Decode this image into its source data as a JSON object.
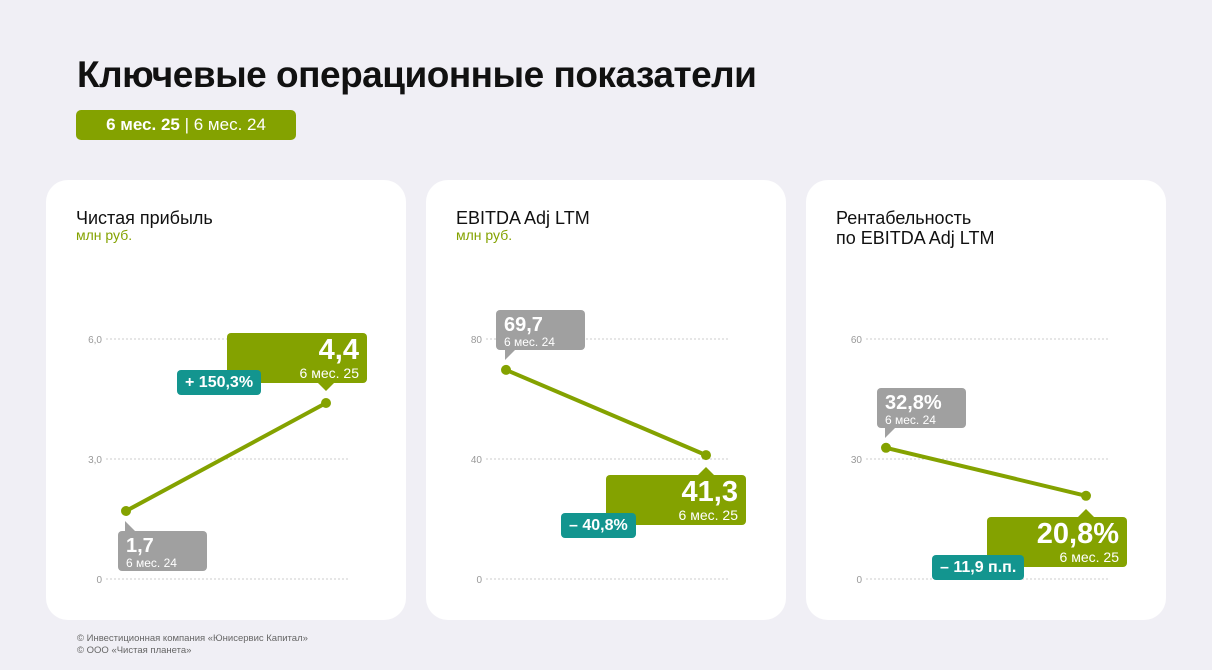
{
  "title": "Ключевые операционные показатели",
  "period": {
    "current": "6 мес. 25",
    "separator": "|",
    "previous": "6 мес. 24"
  },
  "colors": {
    "accent": "#84a200",
    "previous": "#a0a0a0",
    "change": "#13958f",
    "background": "#f0eff5"
  },
  "chart_data": [
    {
      "type": "line",
      "title": "Чистая прибыль",
      "unit": "млн руб.",
      "yticks": [
        "0",
        "3,0",
        "6,0"
      ],
      "ylim": [
        0,
        6
      ],
      "x": [
        "6 мес. 24",
        "6 мес. 25"
      ],
      "values": [
        1.7,
        4.4
      ],
      "labels": [
        "1,7",
        "4,4"
      ],
      "change": "+ 150,3%",
      "grid": true
    },
    {
      "type": "line",
      "title": "EBITDA Adj LTM",
      "unit": "млн руб.",
      "yticks": [
        "0",
        "40",
        "80"
      ],
      "ylim": [
        0,
        80
      ],
      "x": [
        "6 мес. 24",
        "6 мес. 25"
      ],
      "values": [
        69.7,
        41.3
      ],
      "labels": [
        "69,7",
        "41,3"
      ],
      "change": "– 40,8%",
      "grid": true
    },
    {
      "type": "line",
      "title": "Рентабельность\nпо EBITDA Adj LTM",
      "title_lines": [
        "Рентабельность",
        "по EBITDA Adj LTM"
      ],
      "unit": "",
      "yticks": [
        "0",
        "30",
        "60"
      ],
      "ylim": [
        0,
        60
      ],
      "x": [
        "6 мес. 24",
        "6 мес. 25"
      ],
      "values": [
        32.8,
        20.8
      ],
      "labels": [
        "32,8%",
        "20,8%"
      ],
      "change": "– 11,9 п.п.",
      "grid": true
    }
  ],
  "footer": [
    "© Инвестиционная компания «Юнисервис Капитал»",
    "© ООО «Чистая планета»"
  ]
}
